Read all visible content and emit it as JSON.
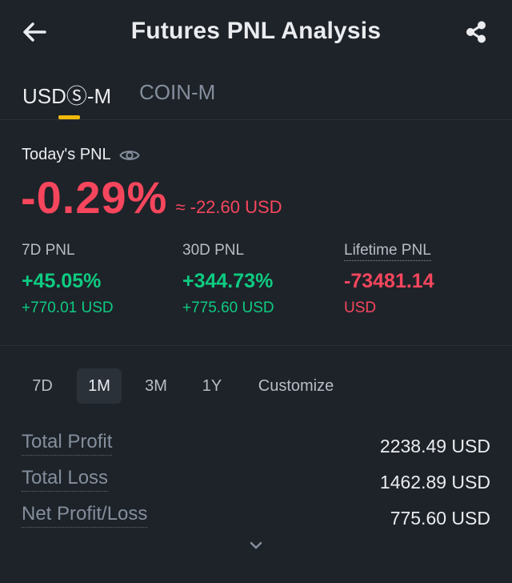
{
  "header": {
    "title": "Futures PNL Analysis",
    "back_icon": "arrow-left-icon",
    "share_icon": "share-icon"
  },
  "tabs": [
    {
      "label": "USDⓈ-M",
      "active": true
    },
    {
      "label": "COIN-M",
      "active": false
    }
  ],
  "today": {
    "label": "Today's PNL",
    "percent": "-0.29%",
    "usd": "≈ -22.60 USD"
  },
  "stats": [
    {
      "label": "7D PNL",
      "percent": "+45.05%",
      "usd": "+770.01 USD"
    },
    {
      "label": "30D PNL",
      "percent": "+344.73%",
      "usd": "+775.60 USD"
    },
    {
      "label": "Lifetime PNL",
      "percent": "-73481.14",
      "usd": "USD"
    }
  ],
  "ranges": [
    {
      "label": "7D",
      "active": false
    },
    {
      "label": "1M",
      "active": true
    },
    {
      "label": "3M",
      "active": false
    },
    {
      "label": "1Y",
      "active": false
    },
    {
      "label": "Customize",
      "active": false
    }
  ],
  "summary": [
    {
      "label": "Total Profit",
      "value": "2238.49 USD"
    },
    {
      "label": "Total Loss",
      "value": "1462.89 USD"
    },
    {
      "label": "Net Profit/Loss",
      "value": "775.60 USD"
    }
  ],
  "colors": {
    "background": "#1e2329",
    "accent": "#f0b90b",
    "positive": "#0ecb81",
    "negative": "#f6465d"
  }
}
